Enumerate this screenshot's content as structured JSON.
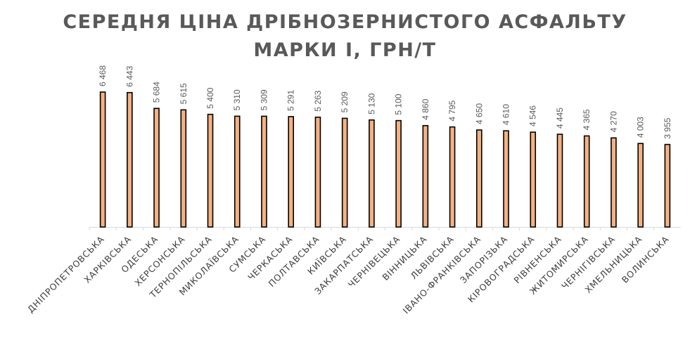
{
  "chart_data": {
    "type": "bar",
    "title_lines": [
      "СЕРЕДНЯ ЦІНА ДРІБНОЗЕРНИСТОГО АСФАЛЬТУ",
      "МАРКИ І, ГРН/Т"
    ],
    "categories": [
      "ДНІПРОПЕТРОВСЬКА",
      "ХАРКІВСЬКА",
      "ОДЕСЬКА",
      "ХЕРСОНСЬКА",
      "ТЕРНОПІЛЬСЬКА",
      "МИКОЛАЇВСЬКА",
      "СУМСЬКА",
      "ЧЕРКАСЬКА",
      "ПОЛТАВСЬКА",
      "КИЇВСЬКА",
      "ЗАКАРПАТСЬКА",
      "ЧЕРНІВЕЦЬКА",
      "ВІННИЦЬКА",
      "ЛЬВІВСЬКА",
      "ІВАНО-ФРАНКІВСЬКА",
      "ЗАПОРІЗЬКА",
      "КІРОВОГРАДСЬКА",
      "РІВНЕНСЬКА",
      "ЖИТОМИРСЬКА",
      "ЧЕРНІГІВСЬКА",
      "ХМЕЛЬНИЦЬКА",
      "ВОЛИНСЬКА"
    ],
    "values": [
      6468,
      6443,
      5684,
      5615,
      5400,
      5310,
      5309,
      5291,
      5263,
      5209,
      5130,
      5100,
      4860,
      4795,
      4650,
      4610,
      4546,
      4445,
      4365,
      4270,
      4003,
      3955
    ],
    "value_labels": [
      "6 468",
      "6 443",
      "5 684",
      "5 615",
      "5 400",
      "5 310",
      "5 309",
      "5 291",
      "5 263",
      "5 209",
      "5 130",
      "5 100",
      "4 860",
      "4 795",
      "4 650",
      "4 610",
      "4 546",
      "4 445",
      "4 365",
      "4 270",
      "4 003",
      "3 955"
    ],
    "ylim": [
      0,
      6468
    ],
    "grid": false,
    "legend": "none",
    "bar_fill": "#F4B183",
    "bar_stroke": "#000000",
    "axis_color": "#D9D9D9"
  }
}
